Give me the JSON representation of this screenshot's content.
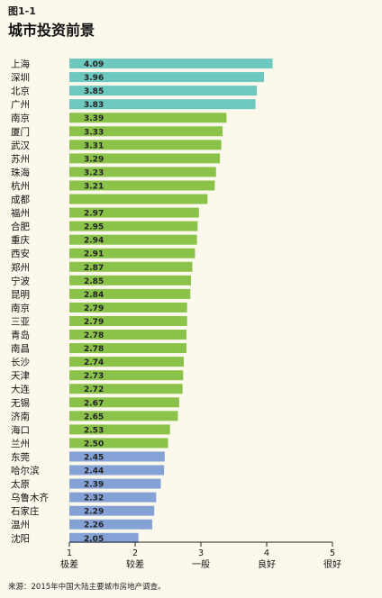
{
  "figure_label": "图1-1",
  "source_note": "来源：2015年中国大陆主要城市房地产调查。",
  "colors": {
    "teal": "#6dc9bf",
    "green": "#8bc34a",
    "blue": "#85a2d6"
  },
  "chart_data": {
    "type": "bar",
    "orientation": "horizontal",
    "title": "城市投资前景",
    "categories": [
      "上海",
      "深圳",
      "北京",
      "广州",
      "南京",
      "厦门",
      "武汉",
      "苏州",
      "珠海",
      "杭州",
      "成都",
      "福州",
      "合肥",
      "重庆",
      "西安",
      "郑州",
      "宁波",
      "昆明",
      "南京",
      "三亚",
      "青岛",
      "南昌",
      "长沙",
      "天津",
      "大连",
      "无锡",
      "济南",
      "海口",
      "兰州",
      "东莞",
      "哈尔滨",
      "太原",
      "乌鲁木齐",
      "石家庄",
      "温州",
      "沈阳"
    ],
    "values": [
      4.09,
      3.96,
      3.85,
      3.83,
      3.39,
      3.33,
      3.31,
      3.29,
      3.23,
      3.21,
      3.1,
      2.97,
      2.95,
      2.94,
      2.91,
      2.87,
      2.85,
      2.84,
      2.79,
      2.79,
      2.78,
      2.78,
      2.74,
      2.73,
      2.72,
      2.67,
      2.65,
      2.53,
      2.5,
      2.45,
      2.44,
      2.39,
      2.32,
      2.29,
      2.26,
      2.05
    ],
    "value_labels": [
      "4.09",
      "3.96",
      "3.85",
      "3.83",
      "3.39",
      "3.33",
      "3.31",
      "3.29",
      "3.23",
      "3.21",
      "3.10",
      "2.97",
      "2.95",
      "2.94",
      "2.91",
      "2.87",
      "2.85",
      "2.84",
      "2.79",
      "2.79",
      "2.78",
      "2.78",
      "2.74",
      "2.73",
      "2.72",
      "2.67",
      "2.65",
      "2.53",
      "2.50",
      "2.45",
      "2.44",
      "2.39",
      "2.32",
      "2.29",
      "2.26",
      "2.05"
    ],
    "unlabeled_value_indices": [
      10
    ],
    "color_groups": [
      "teal",
      "teal",
      "teal",
      "teal",
      "green",
      "green",
      "green",
      "green",
      "green",
      "green",
      "green",
      "green",
      "green",
      "green",
      "green",
      "green",
      "green",
      "green",
      "green",
      "green",
      "green",
      "green",
      "green",
      "green",
      "green",
      "green",
      "green",
      "green",
      "green",
      "blue",
      "blue",
      "blue",
      "blue",
      "blue",
      "blue",
      "blue"
    ],
    "xlim": [
      1,
      5
    ],
    "x_ticks": [
      1,
      2,
      3,
      4,
      5
    ],
    "x_tick_labels": [
      "极差",
      "较差",
      "一般",
      "良好",
      "很好"
    ],
    "grid": false,
    "legend": "none"
  }
}
